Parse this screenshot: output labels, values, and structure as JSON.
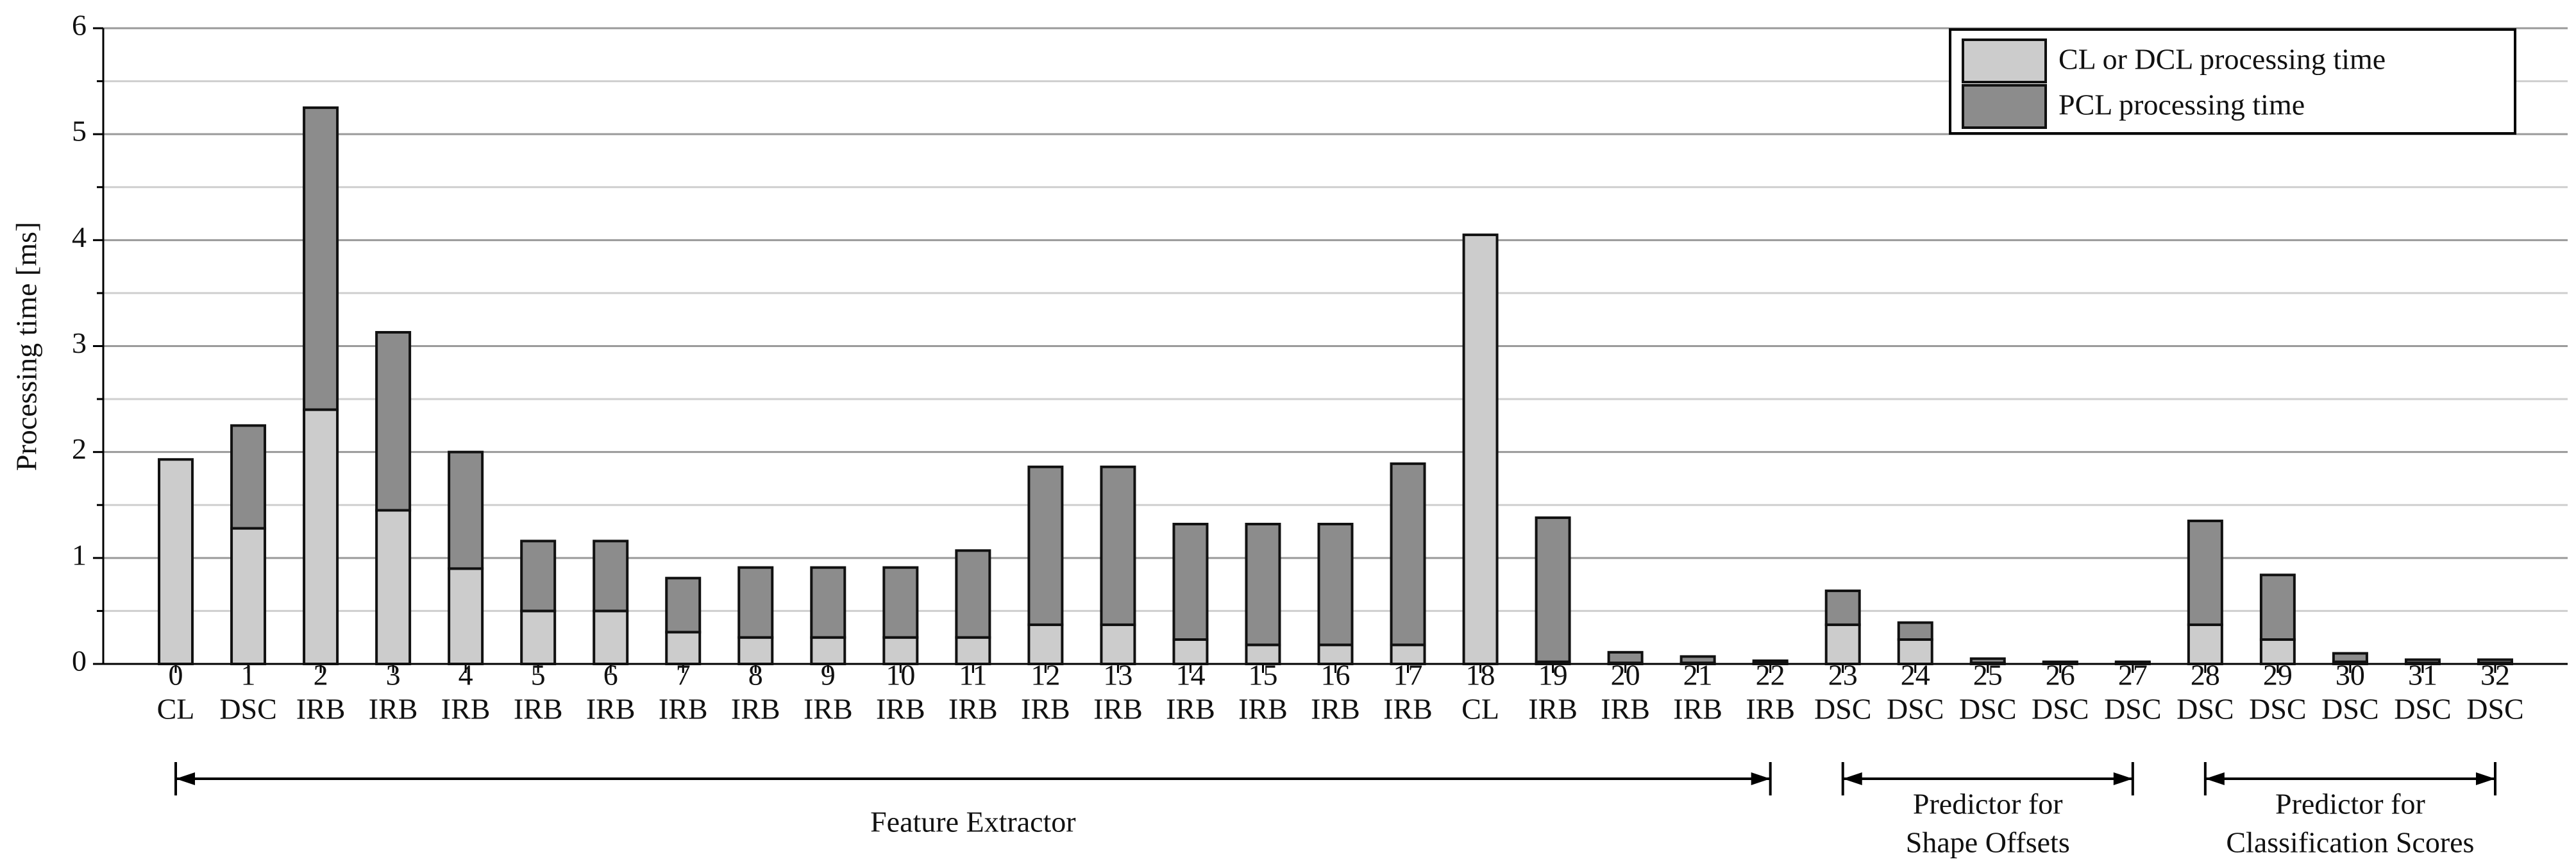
{
  "chart_data": {
    "type": "stacked_bar",
    "y_label": "Processing time [ms]",
    "categories": [
      "0",
      "1",
      "2",
      "3",
      "4",
      "5",
      "6",
      "7",
      "8",
      "9",
      "10",
      "11",
      "12",
      "13",
      "14",
      "15",
      "16",
      "17",
      "18",
      "19",
      "20",
      "21",
      "22",
      "23",
      "24",
      "25",
      "26",
      "27",
      "28",
      "29",
      "30",
      "31",
      "32"
    ],
    "layer_types": [
      "CL",
      "DSC",
      "IRB",
      "IRB",
      "IRB",
      "IRB",
      "IRB",
      "IRB",
      "IRB",
      "IRB",
      "IRB",
      "IRB",
      "IRB",
      "IRB",
      "IRB",
      "IRB",
      "IRB",
      "IRB",
      "CL",
      "IRB",
      "IRB",
      "IRB",
      "IRB",
      "DSC",
      "DSC",
      "DSC",
      "DSC",
      "DSC",
      "DSC",
      "DSC",
      "DSC",
      "DSC",
      "DSC"
    ],
    "series": [
      {
        "name": "CL or DCL processing time",
        "color": "#cccccc",
        "values": [
          1.93,
          1.28,
          2.4,
          1.45,
          0.9,
          0.5,
          0.5,
          0.3,
          0.25,
          0.25,
          0.25,
          0.25,
          0.37,
          0.37,
          0.23,
          0.18,
          0.18,
          0.18,
          4.05,
          0.02,
          0.01,
          0.01,
          0.01,
          0.37,
          0.23,
          0.01,
          0.01,
          0.01,
          0.37,
          0.23,
          0.02,
          0.01,
          0.01
        ]
      },
      {
        "name": "PCL processing time",
        "color": "#8c8c8c",
        "values": [
          0,
          0.97,
          2.85,
          1.68,
          1.1,
          0.66,
          0.66,
          0.51,
          0.66,
          0.66,
          0.66,
          0.82,
          1.49,
          1.49,
          1.09,
          1.14,
          1.14,
          1.71,
          0,
          1.36,
          0.1,
          0.06,
          0.02,
          0.32,
          0.16,
          0.04,
          0.01,
          0.01,
          0.98,
          0.61,
          0.08,
          0.03,
          0.03
        ]
      }
    ],
    "ylim": [
      0,
      6
    ],
    "yticks": [
      0,
      1,
      2,
      3,
      4,
      5,
      6
    ],
    "y_minor_ticks": [
      0.5,
      1.5,
      2.5,
      3.5,
      4.5,
      5.5
    ],
    "grid": true,
    "legend": "top-right",
    "groups": [
      {
        "lines": [
          "Feature Extractor"
        ],
        "span": [
          0,
          22
        ]
      },
      {
        "lines": [
          "Predictor for",
          "Shape Offsets"
        ],
        "span": [
          23,
          27
        ]
      },
      {
        "lines": [
          "Predictor for",
          "Classification Scores"
        ],
        "span": [
          28,
          32
        ]
      }
    ]
  }
}
